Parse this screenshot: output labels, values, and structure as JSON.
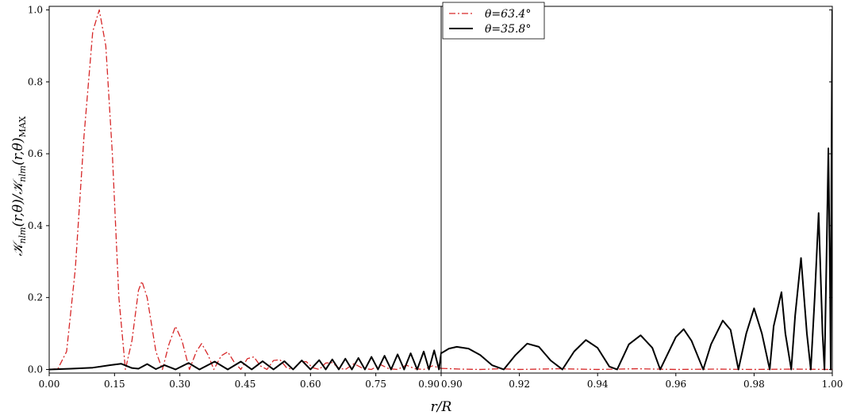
{
  "chart_data": {
    "type": "line",
    "xlabel": "r/R",
    "ylabel": "𝒦nlm(r,θ)/𝒦nlm(r,θ)MAX",
    "ylabel_parts": {
      "main": "𝒦",
      "sub1": "nlm",
      "mid": "(r,θ)/𝒦",
      "sub2": "nlm",
      "tail": "(r,θ)",
      "sub3": "MAX"
    },
    "ylim": [
      -0.01,
      1.01
    ],
    "grid": false,
    "legend_position": "top-center",
    "panels": [
      {
        "xlim": [
          0.0,
          0.9
        ],
        "x_ticks": [
          "0.00",
          "0.15",
          "0.30",
          "0.45",
          "0.60",
          "0.75",
          "0.90"
        ],
        "x_tick_values": [
          0.0,
          0.15,
          0.3,
          0.45,
          0.6,
          0.75,
          0.9
        ]
      },
      {
        "xlim": [
          0.9,
          1.0
        ],
        "x_ticks": [
          "0.90",
          "0.92",
          "0.94",
          "0.96",
          "0.98",
          "1.00"
        ],
        "x_tick_values": [
          0.9,
          0.92,
          0.94,
          0.96,
          0.98,
          1.0
        ]
      }
    ],
    "y_ticks": [
      "0.0",
      "0.2",
      "0.4",
      "0.6",
      "0.8",
      "1.0"
    ],
    "y_tick_values": [
      0.0,
      0.2,
      0.4,
      0.6,
      0.8,
      1.0
    ],
    "series": [
      {
        "name": "θ=63.4°",
        "color": "#d62728",
        "style": "dash-dot",
        "points": [
          [
            0.0,
            0.0
          ],
          [
            0.02,
            0.002
          ],
          [
            0.04,
            0.05
          ],
          [
            0.06,
            0.28
          ],
          [
            0.08,
            0.65
          ],
          [
            0.1,
            0.94
          ],
          [
            0.115,
            1.0
          ],
          [
            0.13,
            0.9
          ],
          [
            0.145,
            0.6
          ],
          [
            0.16,
            0.2
          ],
          [
            0.175,
            0.0
          ],
          [
            0.19,
            0.08
          ],
          [
            0.205,
            0.22
          ],
          [
            0.213,
            0.245
          ],
          [
            0.225,
            0.2
          ],
          [
            0.245,
            0.05
          ],
          [
            0.26,
            0.0
          ],
          [
            0.275,
            0.07
          ],
          [
            0.29,
            0.12
          ],
          [
            0.305,
            0.08
          ],
          [
            0.322,
            0.0
          ],
          [
            0.338,
            0.05
          ],
          [
            0.35,
            0.072
          ],
          [
            0.365,
            0.04
          ],
          [
            0.378,
            0.0
          ],
          [
            0.395,
            0.038
          ],
          [
            0.41,
            0.049
          ],
          [
            0.425,
            0.02
          ],
          [
            0.44,
            0.0
          ],
          [
            0.455,
            0.03
          ],
          [
            0.47,
            0.035
          ],
          [
            0.485,
            0.01
          ],
          [
            0.5,
            0.0
          ],
          [
            0.515,
            0.025
          ],
          [
            0.53,
            0.027
          ],
          [
            0.545,
            0.005
          ],
          [
            0.56,
            0.0
          ],
          [
            0.575,
            0.02
          ],
          [
            0.59,
            0.022
          ],
          [
            0.605,
            0.005
          ],
          [
            0.62,
            0.0
          ],
          [
            0.635,
            0.018
          ],
          [
            0.65,
            0.019
          ],
          [
            0.665,
            0.004
          ],
          [
            0.68,
            0.0
          ],
          [
            0.7,
            0.016
          ],
          [
            0.72,
            0.003
          ],
          [
            0.74,
            0.0
          ],
          [
            0.76,
            0.014
          ],
          [
            0.78,
            0.002
          ],
          [
            0.8,
            0.0
          ],
          [
            0.82,
            0.012
          ],
          [
            0.84,
            0.002
          ],
          [
            0.86,
            0.0
          ],
          [
            0.88,
            0.01
          ],
          [
            0.9,
            0.003
          ],
          [
            0.905,
            0.001
          ],
          [
            0.91,
            0.0
          ],
          [
            0.915,
            0.002
          ],
          [
            0.92,
            0.0
          ],
          [
            0.93,
            0.002
          ],
          [
            0.94,
            0.0
          ],
          [
            0.95,
            0.002
          ],
          [
            0.96,
            0.0
          ],
          [
            0.97,
            0.001
          ],
          [
            0.98,
            0.0
          ],
          [
            0.99,
            0.001
          ],
          [
            1.0,
            0.0
          ]
        ]
      },
      {
        "name": "θ=35.8°",
        "color": "#000000",
        "style": "solid",
        "points": [
          [
            0.0,
            0.0
          ],
          [
            0.05,
            0.002
          ],
          [
            0.1,
            0.005
          ],
          [
            0.14,
            0.012
          ],
          [
            0.165,
            0.016
          ],
          [
            0.19,
            0.004
          ],
          [
            0.205,
            0.002
          ],
          [
            0.225,
            0.015
          ],
          [
            0.245,
            0.001
          ],
          [
            0.265,
            0.012
          ],
          [
            0.29,
            0.0
          ],
          [
            0.32,
            0.018
          ],
          [
            0.345,
            0.0
          ],
          [
            0.38,
            0.022
          ],
          [
            0.41,
            0.0
          ],
          [
            0.44,
            0.022
          ],
          [
            0.465,
            0.0
          ],
          [
            0.49,
            0.023
          ],
          [
            0.515,
            0.0
          ],
          [
            0.54,
            0.023
          ],
          [
            0.56,
            0.0
          ],
          [
            0.58,
            0.025
          ],
          [
            0.6,
            0.0
          ],
          [
            0.62,
            0.026
          ],
          [
            0.635,
            0.0
          ],
          [
            0.65,
            0.028
          ],
          [
            0.665,
            0.0
          ],
          [
            0.68,
            0.03
          ],
          [
            0.695,
            0.0
          ],
          [
            0.71,
            0.032
          ],
          [
            0.725,
            0.0
          ],
          [
            0.74,
            0.035
          ],
          [
            0.755,
            0.0
          ],
          [
            0.77,
            0.038
          ],
          [
            0.785,
            0.0
          ],
          [
            0.8,
            0.042
          ],
          [
            0.815,
            0.0
          ],
          [
            0.83,
            0.045
          ],
          [
            0.845,
            0.0
          ],
          [
            0.86,
            0.05
          ],
          [
            0.872,
            0.0
          ],
          [
            0.884,
            0.053
          ],
          [
            0.895,
            0.0
          ],
          [
            0.9,
            0.045
          ],
          [
            0.902,
            0.058
          ],
          [
            0.904,
            0.063
          ],
          [
            0.907,
            0.058
          ],
          [
            0.91,
            0.04
          ],
          [
            0.913,
            0.012
          ],
          [
            0.916,
            0.0
          ],
          [
            0.919,
            0.04
          ],
          [
            0.922,
            0.072
          ],
          [
            0.925,
            0.063
          ],
          [
            0.928,
            0.025
          ],
          [
            0.931,
            0.0
          ],
          [
            0.934,
            0.05
          ],
          [
            0.937,
            0.082
          ],
          [
            0.94,
            0.06
          ],
          [
            0.943,
            0.008
          ],
          [
            0.945,
            0.0
          ],
          [
            0.948,
            0.07
          ],
          [
            0.951,
            0.095
          ],
          [
            0.954,
            0.06
          ],
          [
            0.956,
            0.0
          ],
          [
            0.96,
            0.09
          ],
          [
            0.962,
            0.112
          ],
          [
            0.964,
            0.08
          ],
          [
            0.967,
            0.0
          ],
          [
            0.969,
            0.07
          ],
          [
            0.972,
            0.136
          ],
          [
            0.974,
            0.11
          ],
          [
            0.976,
            0.0
          ],
          [
            0.978,
            0.1
          ],
          [
            0.98,
            0.17
          ],
          [
            0.982,
            0.1
          ],
          [
            0.984,
            0.0
          ],
          [
            0.985,
            0.12
          ],
          [
            0.987,
            0.215
          ],
          [
            0.988,
            0.1
          ],
          [
            0.9895,
            0.0
          ],
          [
            0.9905,
            0.15
          ],
          [
            0.992,
            0.31
          ],
          [
            0.9935,
            0.1
          ],
          [
            0.9945,
            0.0
          ],
          [
            0.9955,
            0.2
          ],
          [
            0.9965,
            0.435
          ],
          [
            0.9975,
            0.1
          ],
          [
            0.998,
            0.0
          ],
          [
            0.9985,
            0.3
          ],
          [
            0.999,
            0.615
          ],
          [
            0.9994,
            0.25
          ],
          [
            0.9996,
            0.0
          ],
          [
            0.9998,
            0.6
          ],
          [
            1.0,
            1.0
          ],
          [
            1.001,
            0.545
          ]
        ]
      }
    ]
  }
}
